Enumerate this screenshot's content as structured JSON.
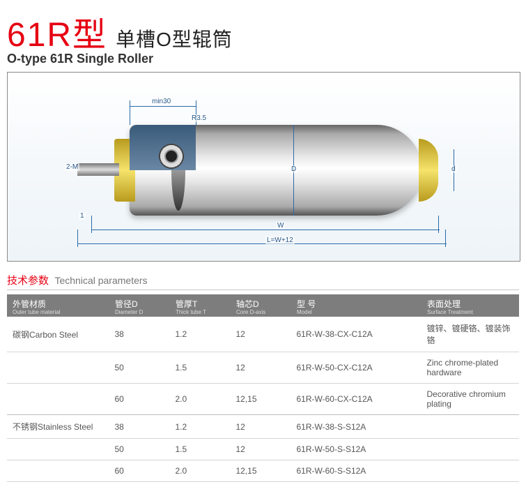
{
  "header": {
    "title_main": "61R型",
    "title_sub_cn": "单槽O型辊筒",
    "title_sub_en": "O-type 61R Single Roller"
  },
  "diagram": {
    "background_gradient": [
      "#ffffff",
      "#eef4f8"
    ],
    "roller_body_color": "#c0c0c0",
    "cap_color": "#e8d24a",
    "shaft_color": "#a0a0a0",
    "dim_line_color": "#2a6aa8",
    "labels": {
      "min30": "min30",
      "r35": "R3.5",
      "one": "1",
      "twoM": "2-M",
      "D": "D",
      "d": "d",
      "W": "W",
      "L": "L=W+12"
    }
  },
  "section": {
    "title_cn": "技术参数",
    "title_en": "Technical parameters"
  },
  "table": {
    "header_bg": "#7d7d7d",
    "columns": [
      {
        "cn": "外管材质",
        "en": "Outer tube material"
      },
      {
        "cn": "管径D",
        "en": "Diameter D"
      },
      {
        "cn": "管厚T",
        "en": "Thick tube T"
      },
      {
        "cn": "轴芯D",
        "en": "Core D-axis"
      },
      {
        "cn": "型 号",
        "en": "Model"
      },
      {
        "cn": "表面处理",
        "en": "Surface Treatment"
      }
    ],
    "rows": [
      {
        "material": "碳钢Carbon Steel",
        "d": "38",
        "t": "1.2",
        "core": "12",
        "model": "61R-W-38-CX-C12A",
        "surface": "镀锌、镀硬铬、镀装饰铬"
      },
      {
        "material": "",
        "d": "50",
        "t": "1.5",
        "core": "12",
        "model": "61R-W-50-CX-C12A",
        "surface": "Zinc  chrome-plated hardware"
      },
      {
        "material": "",
        "d": "60",
        "t": "2.0",
        "core": "12,15",
        "model": "61R-W-60-CX-C12A",
        "surface": "Decorative  chromium plating",
        "sep": true
      },
      {
        "material": "不锈钢Stainless Steel",
        "d": "38",
        "t": "1.2",
        "core": "12",
        "model": "61R-W-38-S-S12A",
        "surface": ""
      },
      {
        "material": "",
        "d": "50",
        "t": "1.5",
        "core": "12",
        "model": "61R-W-50-S-S12A",
        "surface": ""
      },
      {
        "material": "",
        "d": "60",
        "t": "2.0",
        "core": "12,15",
        "model": "61R-W-60-S-S12A",
        "surface": ""
      }
    ]
  }
}
